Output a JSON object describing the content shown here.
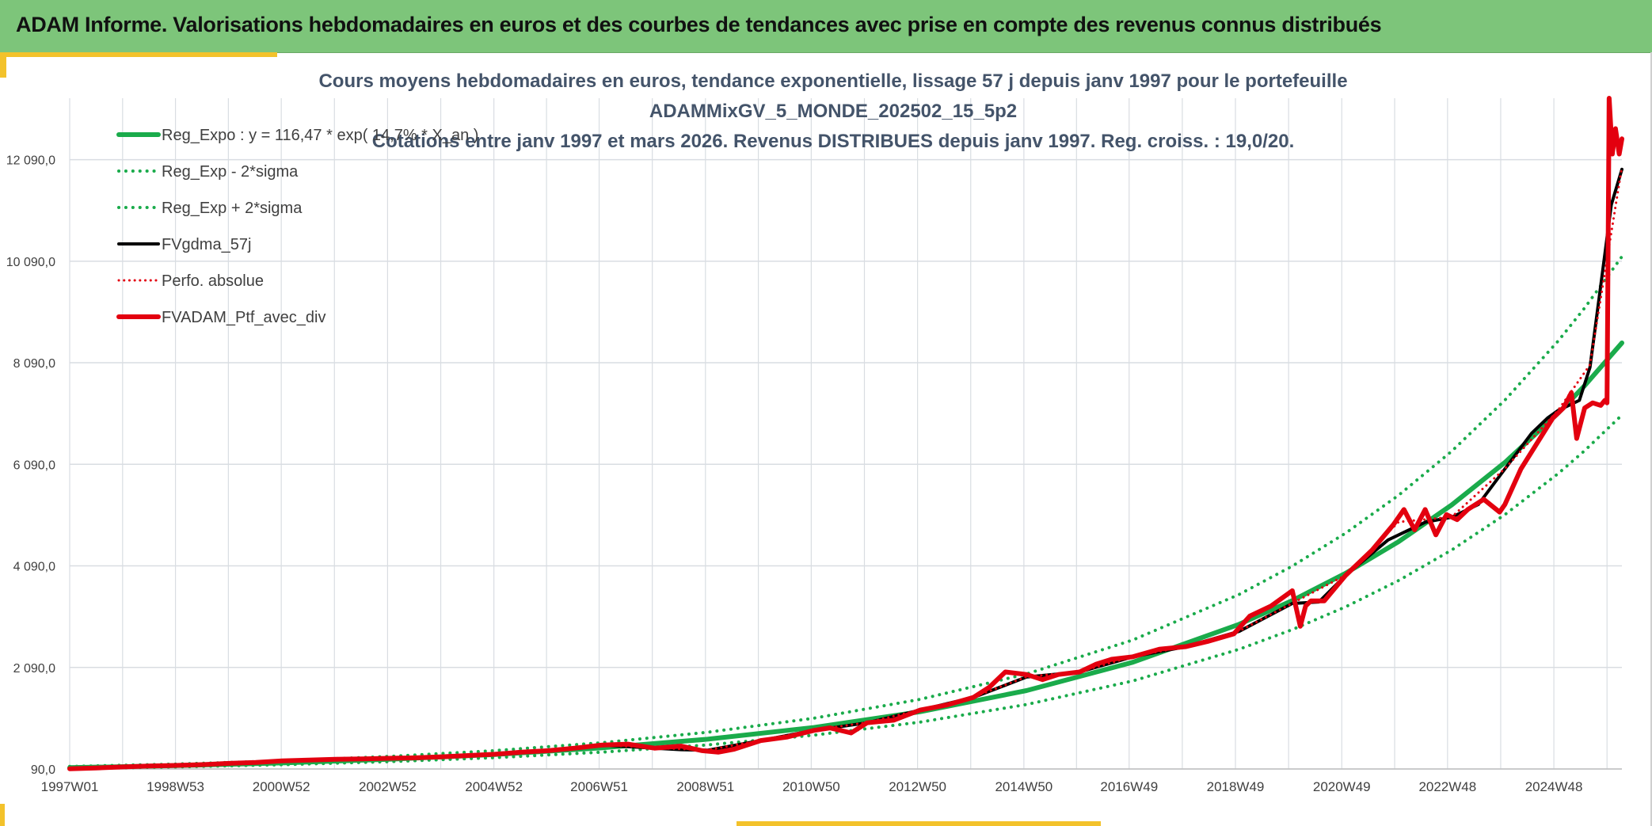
{
  "header": {
    "title": "ADAM Informe. Valorisations hebdomadaires en euros et des courbes de tendances avec prise en compte des revenus connus distribués"
  },
  "colors": {
    "header_bg": "#7dc57a",
    "accent": "#f3c22b",
    "reg_green": "#1aab4b",
    "black": "#000000",
    "red": "#e3000f",
    "grid": "#d9dde2",
    "title": "#44546a"
  },
  "chart_data": {
    "type": "line",
    "title": [
      "Cours moyens hebdomadaires en euros, tendance exponentielle, lissage 57 j depuis janv 1997 pour le portefeuille",
      "ADAMMixGV_5_MONDE_202502_15_5p2",
      "Cotations entre janv 1997 et mars 2026. Revenus DISTRIBUES depuis janv 1997. Reg. croiss. : 19,0/20."
    ],
    "xlabel": "",
    "ylabel": "",
    "xlim": [
      1997.0,
      2026.2
    ],
    "ylim": [
      90,
      13300
    ],
    "y_ticks": [
      {
        "value": 90,
        "label": "90,0"
      },
      {
        "value": 2090,
        "label": "2 090,0"
      },
      {
        "value": 4090,
        "label": "4 090,0"
      },
      {
        "value": 6090,
        "label": "6 090,0"
      },
      {
        "value": 8090,
        "label": "8 090,0"
      },
      {
        "value": 10090,
        "label": "10 090,0"
      },
      {
        "value": 12090,
        "label": "12 090,0"
      }
    ],
    "x_ticks": [
      {
        "value": 1997.0,
        "label": "1997W01"
      },
      {
        "value": 1998.99,
        "label": "1998W53"
      },
      {
        "value": 2000.98,
        "label": "2000W52"
      },
      {
        "value": 2002.98,
        "label": "2002W52"
      },
      {
        "value": 2004.98,
        "label": "2004W52"
      },
      {
        "value": 2006.96,
        "label": "2006W51"
      },
      {
        "value": 2008.96,
        "label": "2008W51"
      },
      {
        "value": 2010.95,
        "label": "2010W50"
      },
      {
        "value": 2012.95,
        "label": "2012W50"
      },
      {
        "value": 2014.95,
        "label": "2014W50"
      },
      {
        "value": 2016.93,
        "label": "2016W49"
      },
      {
        "value": 2018.93,
        "label": "2018W49"
      },
      {
        "value": 2020.93,
        "label": "2020W49"
      },
      {
        "value": 2022.92,
        "label": "2022W48"
      },
      {
        "value": 2024.92,
        "label": "2024W48"
      }
    ],
    "grid": true,
    "series": [
      {
        "name": "Reg_Expo : y = 116,47 * exp( 14,7% *  X_an )",
        "style": "solid",
        "color": "#1aab4b",
        "width": 6,
        "x": [
          1997,
          1999,
          2001,
          2003,
          2005,
          2007,
          2009,
          2011,
          2013,
          2015,
          2017,
          2019,
          2020,
          2021,
          2022,
          2023,
          2024,
          2025,
          2025.5,
          2026.2
        ],
        "values": [
          116,
          156,
          209,
          281,
          376,
          505,
          677,
          908,
          1218,
          1634,
          2192,
          2940,
          3405,
          3944,
          4568,
          5291,
          6128,
          7098,
          7640,
          8480
        ]
      },
      {
        "name": "Reg_Exp - 2*sigma",
        "style": "dotted",
        "color": "#1aab4b",
        "width": 4,
        "x": [
          1997,
          1999,
          2001,
          2003,
          2005,
          2007,
          2009,
          2011,
          2013,
          2015,
          2017,
          2019,
          2020,
          2021,
          2022,
          2023,
          2024,
          2025,
          2025.5,
          2026.2
        ],
        "values": [
          97,
          130,
          174,
          234,
          313,
          420,
          564,
          756,
          1014,
          1360,
          1825,
          2448,
          2835,
          3283,
          3802,
          4404,
          5100,
          5908,
          6360,
          7060
        ]
      },
      {
        "name": "Reg_Exp + 2*sigma",
        "style": "dotted",
        "color": "#1aab4b",
        "width": 4,
        "x": [
          1997,
          1999,
          2001,
          2003,
          2005,
          2007,
          2009,
          2011,
          2013,
          2015,
          2017,
          2019,
          2020,
          2021,
          2022,
          2023,
          2024,
          2025,
          2025.5,
          2026.2
        ],
        "values": [
          140,
          187,
          251,
          337,
          452,
          606,
          813,
          1090,
          1462,
          1961,
          2630,
          3528,
          4086,
          4733,
          5482,
          6349,
          7354,
          8518,
          9170,
          10180
        ]
      },
      {
        "name": "FVgdma_57j",
        "style": "solid",
        "color": "#000000",
        "width": 4,
        "x": [
          1997,
          1998,
          1999,
          2000,
          2001,
          2002,
          2003,
          2004,
          2005,
          2006,
          2007,
          2008,
          2008.5,
          2009,
          2010,
          2011,
          2012,
          2013,
          2014,
          2015,
          2016,
          2017,
          2018,
          2019,
          2020,
          2020.5,
          2021,
          2021.8,
          2022.5,
          2023,
          2023.5,
          2024,
          2024.5,
          2024.8,
          2025.0,
          2025.2,
          2025.4,
          2025.6,
          2025.8,
          2026.0,
          2026.2
        ],
        "values": [
          95,
          130,
          160,
          200,
          250,
          280,
          300,
          330,
          380,
          450,
          560,
          500,
          470,
          460,
          650,
          850,
          1000,
          1250,
          1500,
          1900,
          2000,
          2300,
          2500,
          2800,
          3350,
          3380,
          3900,
          4600,
          4950,
          5050,
          5300,
          6000,
          6700,
          7000,
          7150,
          7250,
          7350,
          8000,
          9600,
          11200,
          11900
        ]
      },
      {
        "name": "Perfo. absolue",
        "style": "dotted",
        "color": "#e3000f",
        "width": 3,
        "x": [
          1997,
          1998,
          1999,
          2000,
          2001,
          2002,
          2003,
          2004,
          2005,
          2006,
          2007,
          2008,
          2009,
          2010,
          2011,
          2012,
          2013,
          2014,
          2015,
          2016,
          2017,
          2018,
          2019,
          2020,
          2021,
          2022,
          2023,
          2024,
          2025,
          2025.6,
          2026.2
        ],
        "values": [
          95,
          131,
          162,
          203,
          252,
          282,
          302,
          332,
          383,
          453,
          565,
          505,
          465,
          655,
          855,
          1005,
          1255,
          1505,
          1905,
          2005,
          2305,
          2505,
          2805,
          3355,
          3905,
          4955,
          5055,
          6005,
          7155,
          8050,
          11950
        ]
      },
      {
        "name": "FVADAM_Ptf_avec_div",
        "style": "solid",
        "color": "#e3000f",
        "width": 6,
        "x": [
          1997.0,
          1997.5,
          1998.0,
          1998.5,
          1999.0,
          1999.5,
          2000.0,
          2000.5,
          2001.0,
          2001.5,
          2002.0,
          2002.5,
          2003.0,
          2003.5,
          2004.0,
          2004.5,
          2005.0,
          2005.5,
          2006.0,
          2006.5,
          2007.0,
          2007.5,
          2008.0,
          2008.5,
          2008.9,
          2009.2,
          2009.5,
          2010.0,
          2010.5,
          2011.0,
          2011.3,
          2011.7,
          2012.0,
          2012.5,
          2013.0,
          2013.5,
          2014.0,
          2014.3,
          2014.6,
          2015.0,
          2015.3,
          2015.6,
          2016.0,
          2016.3,
          2016.6,
          2017.0,
          2017.5,
          2018.0,
          2018.4,
          2018.9,
          2019.2,
          2019.6,
          2020.0,
          2020.15,
          2020.25,
          2020.35,
          2020.6,
          2021.0,
          2021.5,
          2021.9,
          2022.1,
          2022.3,
          2022.5,
          2022.7,
          2022.9,
          2023.1,
          2023.3,
          2023.6,
          2023.9,
          2024.0,
          2024.3,
          2024.6,
          2024.9,
          2025.1,
          2025.25,
          2025.35,
          2025.5,
          2025.65,
          2025.8,
          2025.88,
          2025.92,
          2025.96,
          2026.02,
          2026.08,
          2026.15,
          2026.2
        ],
        "values": [
          95,
          110,
          130,
          150,
          160,
          175,
          200,
          220,
          250,
          265,
          280,
          290,
          300,
          310,
          330,
          355,
          380,
          420,
          450,
          500,
          560,
          580,
          500,
          540,
          450,
          420,
          480,
          650,
          720,
          850,
          900,
          800,
          1000,
          1050,
          1250,
          1350,
          1500,
          1700,
          2000,
          1950,
          1850,
          1950,
          2000,
          2150,
          2250,
          2300,
          2450,
          2500,
          2600,
          2750,
          3100,
          3300,
          3600,
          2900,
          3300,
          3400,
          3400,
          3900,
          4400,
          4900,
          5200,
          4800,
          5200,
          4700,
          5100,
          5000,
          5200,
          5400,
          5150,
          5300,
          6000,
          6500,
          7000,
          7200,
          7500,
          6600,
          7200,
          7300,
          7250,
          7350,
          7300,
          13300,
          12200,
          12700,
          12200,
          12500
        ]
      }
    ]
  }
}
